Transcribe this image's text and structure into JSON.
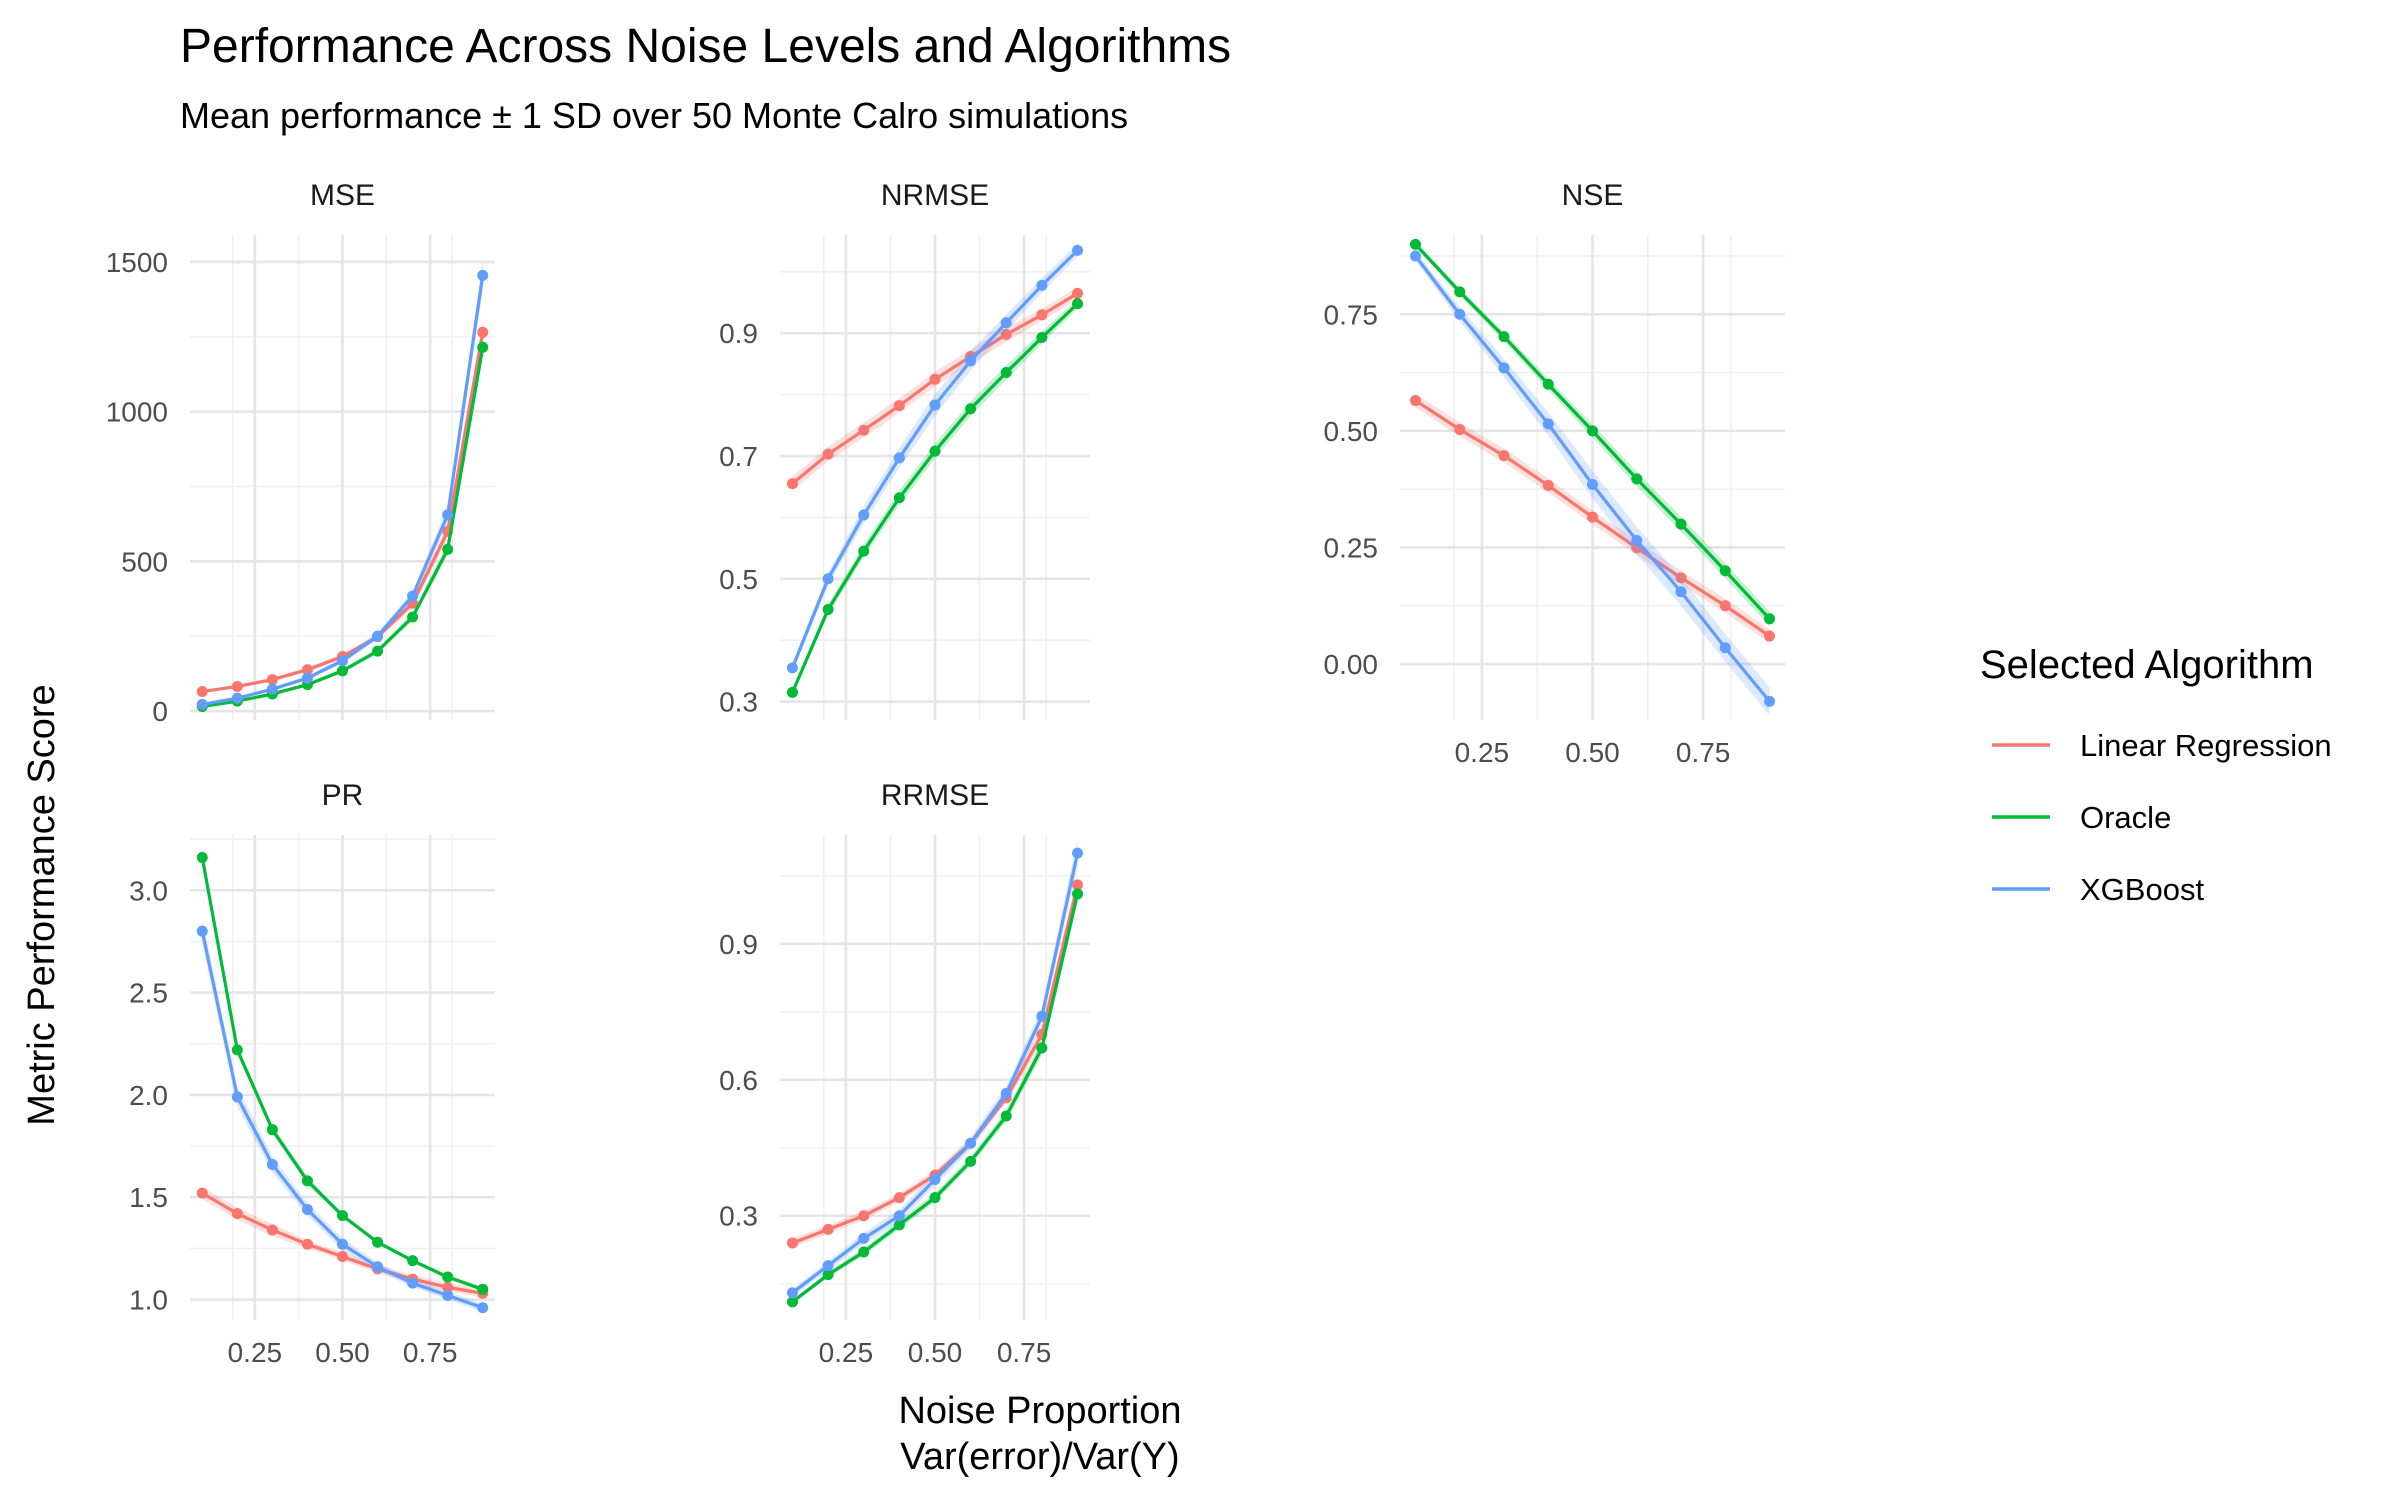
{
  "chart_data": {
    "type": "line",
    "title": "Performance Across Noise Levels and Algorithms",
    "subtitle": "Mean performance ± 1 SD over 50 Monte Calro simulations",
    "xlabel": "Noise Proportion\nVar(error)/Var(Y)",
    "ylabel": "Metric Performance Score",
    "legend": {
      "title": "Selected Algorithm",
      "position": "right",
      "entries": [
        "Linear Regression",
        "Oracle",
        "XGBoost"
      ]
    },
    "colors": {
      "Linear Regression": "#F8766D",
      "Oracle": "#00BA38",
      "XGBoost": "#619CFF"
    },
    "x": [
      0.1,
      0.2,
      0.3,
      0.4,
      0.5,
      0.6,
      0.7,
      0.8,
      0.9
    ],
    "xlim": [
      0.065,
      0.935
    ],
    "x_ticks": [
      0.25,
      0.5,
      0.75
    ],
    "x_tick_labels": [
      "0.25",
      "0.50",
      "0.75"
    ],
    "grid": true,
    "facets": [
      {
        "name": "MSE",
        "ylim": [
          -30,
          1590
        ],
        "y_ticks": [
          0,
          500,
          1000,
          1500
        ],
        "y_tick_labels": [
          "0",
          "500",
          "1000",
          "1500"
        ],
        "series": [
          {
            "name": "Linear Regression",
            "values": [
              65,
              82,
              105,
              138,
              182,
              248,
              360,
              600,
              1265
            ],
            "sd": [
              5,
              5,
              6,
              7,
              9,
              11,
              15,
              25,
              40
            ]
          },
          {
            "name": "Oracle",
            "values": [
              15,
              33,
              57,
              88,
              134,
              200,
              314,
              540,
              1215
            ],
            "sd": [
              2,
              3,
              4,
              5,
              7,
              9,
              12,
              20,
              35
            ]
          },
          {
            "name": "XGBoost",
            "values": [
              22,
              43,
              73,
              110,
              168,
              250,
              384,
              655,
              1455
            ],
            "sd": [
              3,
              4,
              5,
              7,
              9,
              12,
              16,
              28,
              50
            ]
          }
        ]
      },
      {
        "name": "NRMSE",
        "ylim": [
          0.27,
          1.06
        ],
        "y_ticks": [
          0.3,
          0.5,
          0.7,
          0.9
        ],
        "y_tick_labels": [
          "0.3",
          "0.5",
          "0.7",
          "0.9"
        ],
        "series": [
          {
            "name": "Linear Regression",
            "values": [
              0.655,
              0.703,
              0.742,
              0.782,
              0.825,
              0.862,
              0.898,
              0.93,
              0.965
            ],
            "sd": [
              0.012,
              0.012,
              0.012,
              0.012,
              0.012,
              0.012,
              0.012,
              0.01,
              0.01
            ]
          },
          {
            "name": "Oracle",
            "values": [
              0.315,
              0.45,
              0.545,
              0.632,
              0.708,
              0.777,
              0.836,
              0.893,
              0.948
            ],
            "sd": [
              0.006,
              0.008,
              0.01,
              0.012,
              0.012,
              0.012,
              0.012,
              0.01,
              0.008
            ]
          },
          {
            "name": "XGBoost",
            "values": [
              0.355,
              0.5,
              0.604,
              0.697,
              0.783,
              0.855,
              0.917,
              0.978,
              1.035
            ],
            "sd": [
              0.008,
              0.01,
              0.014,
              0.016,
              0.018,
              0.016,
              0.014,
              0.012,
              0.01
            ]
          }
        ]
      },
      {
        "name": "NSE",
        "ylim": [
          -0.12,
          0.92
        ],
        "y_ticks": [
          0.0,
          0.25,
          0.5,
          0.75
        ],
        "y_tick_labels": [
          "0.00",
          "0.25",
          "0.50",
          "0.75"
        ],
        "series": [
          {
            "name": "Linear Regression",
            "values": [
              0.565,
              0.503,
              0.447,
              0.383,
              0.315,
              0.249,
              0.185,
              0.125,
              0.06
            ],
            "sd": [
              0.015,
              0.015,
              0.015,
              0.015,
              0.015,
              0.015,
              0.015,
              0.015,
              0.015
            ]
          },
          {
            "name": "Oracle",
            "values": [
              0.9,
              0.798,
              0.702,
              0.6,
              0.5,
              0.397,
              0.3,
              0.2,
              0.097
            ],
            "sd": [
              0.006,
              0.008,
              0.01,
              0.012,
              0.014,
              0.016,
              0.016,
              0.016,
              0.016
            ]
          },
          {
            "name": "XGBoost",
            "values": [
              0.875,
              0.75,
              0.635,
              0.515,
              0.385,
              0.265,
              0.155,
              0.035,
              -0.08
            ],
            "sd": [
              0.01,
              0.015,
              0.02,
              0.025,
              0.03,
              0.03,
              0.03,
              0.03,
              0.03
            ]
          }
        ]
      },
      {
        "name": "PR",
        "ylim": [
          0.9,
          3.27
        ],
        "y_ticks": [
          1.0,
          1.5,
          2.0,
          2.5,
          3.0
        ],
        "y_tick_labels": [
          "1.0",
          "1.5",
          "2.0",
          "2.5",
          "3.0"
        ],
        "series": [
          {
            "name": "Linear Regression",
            "values": [
              1.52,
              1.42,
              1.34,
              1.27,
              1.21,
              1.15,
              1.1,
              1.06,
              1.03
            ],
            "sd": [
              0.03,
              0.03,
              0.03,
              0.02,
              0.02,
              0.02,
              0.02,
              0.02,
              0.02
            ]
          },
          {
            "name": "Oracle",
            "values": [
              3.16,
              2.22,
              1.83,
              1.58,
              1.41,
              1.28,
              1.19,
              1.11,
              1.05
            ],
            "sd": [
              0.03,
              0.02,
              0.02,
              0.02,
              0.01,
              0.01,
              0.01,
              0.01,
              0.01
            ]
          },
          {
            "name": "XGBoost",
            "values": [
              2.8,
              1.99,
              1.66,
              1.44,
              1.27,
              1.16,
              1.08,
              1.02,
              0.96
            ],
            "sd": [
              0.06,
              0.05,
              0.04,
              0.03,
              0.03,
              0.02,
              0.02,
              0.02,
              0.02
            ]
          }
        ]
      },
      {
        "name": "RRMSE",
        "ylim": [
          0.07,
          1.14
        ],
        "y_ticks": [
          0.3,
          0.6,
          0.9
        ],
        "y_tick_labels": [
          "0.3",
          "0.6",
          "0.9"
        ],
        "series": [
          {
            "name": "Linear Regression",
            "values": [
              0.24,
              0.27,
              0.3,
              0.34,
              0.39,
              0.46,
              0.56,
              0.7,
              1.03
            ],
            "sd": [
              0.01,
              0.01,
              0.01,
              0.01,
              0.01,
              0.01,
              0.01,
              0.02,
              0.02
            ]
          },
          {
            "name": "Oracle",
            "values": [
              0.11,
              0.17,
              0.22,
              0.28,
              0.34,
              0.42,
              0.52,
              0.67,
              1.01
            ],
            "sd": [
              0.005,
              0.006,
              0.008,
              0.01,
              0.01,
              0.01,
              0.012,
              0.015,
              0.02
            ]
          },
          {
            "name": "XGBoost",
            "values": [
              0.13,
              0.19,
              0.25,
              0.3,
              0.38,
              0.46,
              0.57,
              0.74,
              1.1
            ],
            "sd": [
              0.008,
              0.01,
              0.012,
              0.014,
              0.014,
              0.014,
              0.015,
              0.02,
              0.03
            ]
          }
        ]
      }
    ]
  }
}
